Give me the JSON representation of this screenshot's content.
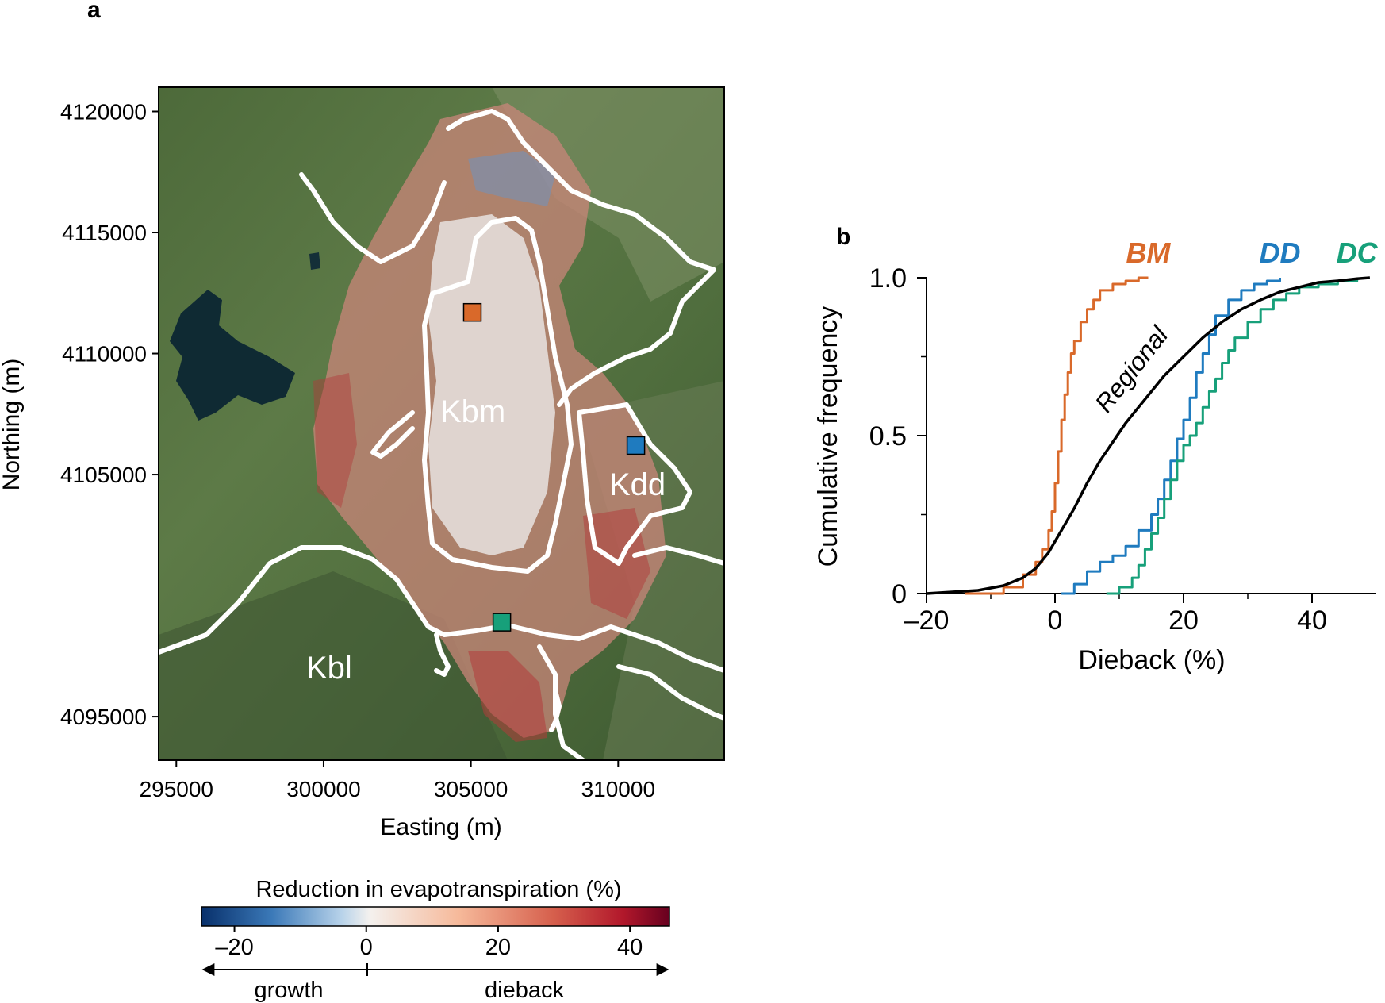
{
  "panels": {
    "a": {
      "label": "a",
      "xlabel": "Easting (m)",
      "ylabel": "Northing (m)",
      "xticks": [
        295000,
        300000,
        305000,
        310000
      ],
      "yticks": [
        4095000,
        4105000,
        4110000,
        4115000,
        4120000
      ],
      "xlim": [
        294400,
        313600
      ],
      "ylim": [
        4093200,
        4121000
      ],
      "map_labels": [
        "Kbm",
        "Kdd",
        "Kbl"
      ],
      "sites": [
        {
          "name": "BM",
          "color": "#d9692a",
          "x": 305050,
          "y": 4111700
        },
        {
          "name": "DD",
          "color": "#1f7bbf",
          "x": 310600,
          "y": 4106200
        },
        {
          "name": "DC",
          "color": "#17a07a",
          "x": 306050,
          "y": 4098900
        }
      ],
      "colorbar": {
        "title": "Reduction in evapotranspiration (%)",
        "range": [
          -25,
          46
        ],
        "ticks": [
          "–20",
          "0",
          "20",
          "40"
        ],
        "tick_values": [
          -20,
          0,
          20,
          40
        ],
        "left_label": "growth",
        "right_label": "dieback"
      }
    },
    "b": {
      "label": "b",
      "xlabel": "Dieback (%)",
      "ylabel": "Cumulative frequency",
      "xlim": [
        -20,
        50
      ],
      "ylim": [
        0,
        1
      ],
      "xticks": [
        "–20",
        "0",
        "20",
        "40"
      ],
      "xtick_values": [
        -20,
        0,
        20,
        40
      ],
      "yticks": [
        "0",
        "0.5",
        "1.0"
      ],
      "ytick_values": [
        0,
        0.5,
        1.0
      ],
      "curve_label": "Regional"
    }
  },
  "chart_data": {
    "type": "line",
    "title": "",
    "xlabel": "Dieback (%)",
    "ylabel": "Cumulative frequency",
    "xlim": [
      -20,
      50
    ],
    "ylim": [
      0,
      1
    ],
    "series": [
      {
        "name": "BM",
        "color": "#d9692a",
        "x": [
          -14,
          -8,
          -5,
          -3,
          -2,
          -1,
          -0.5,
          0,
          0.5,
          1,
          1.5,
          2,
          2.5,
          3,
          4,
          5,
          6,
          7,
          9,
          11,
          13,
          14.5
        ],
        "y": [
          0,
          0.02,
          0.06,
          0.1,
          0.14,
          0.2,
          0.26,
          0.35,
          0.45,
          0.55,
          0.63,
          0.7,
          0.76,
          0.8,
          0.86,
          0.9,
          0.93,
          0.96,
          0.98,
          0.99,
          1.0,
          1.0
        ]
      },
      {
        "name": "DD",
        "color": "#1f7bbf",
        "x": [
          1,
          3,
          5,
          7,
          9,
          11,
          13,
          15,
          16,
          17,
          18,
          19,
          20,
          21,
          22,
          23,
          24,
          25,
          27,
          29,
          31,
          33,
          35
        ],
        "y": [
          0,
          0.03,
          0.07,
          0.1,
          0.12,
          0.15,
          0.2,
          0.25,
          0.3,
          0.36,
          0.42,
          0.49,
          0.55,
          0.62,
          0.7,
          0.76,
          0.82,
          0.88,
          0.93,
          0.96,
          0.98,
          0.99,
          1.0
        ]
      },
      {
        "name": "DC",
        "color": "#17a07a",
        "x": [
          8,
          10,
          12,
          13,
          14,
          15,
          16,
          17,
          18,
          19,
          20,
          21,
          22,
          23,
          24,
          25,
          26,
          27,
          28,
          30,
          32,
          34,
          36,
          38,
          41,
          44,
          47
        ],
        "y": [
          0,
          0.02,
          0.05,
          0.09,
          0.14,
          0.19,
          0.24,
          0.3,
          0.36,
          0.42,
          0.47,
          0.5,
          0.54,
          0.59,
          0.64,
          0.68,
          0.73,
          0.77,
          0.81,
          0.86,
          0.9,
          0.93,
          0.95,
          0.97,
          0.98,
          0.99,
          1.0
        ]
      },
      {
        "name": "Regional",
        "color": "#000000",
        "x": [
          -20,
          -16,
          -12,
          -8,
          -5,
          -3,
          -1,
          1,
          3,
          5,
          7,
          9,
          11,
          13,
          15,
          17,
          20,
          23,
          26,
          29,
          32,
          35,
          38,
          41,
          44,
          47,
          49
        ],
        "y": [
          0,
          0.005,
          0.01,
          0.025,
          0.05,
          0.08,
          0.13,
          0.2,
          0.27,
          0.35,
          0.42,
          0.48,
          0.54,
          0.59,
          0.64,
          0.69,
          0.75,
          0.81,
          0.86,
          0.9,
          0.93,
          0.955,
          0.97,
          0.985,
          0.99,
          0.997,
          1.0
        ]
      }
    ]
  }
}
